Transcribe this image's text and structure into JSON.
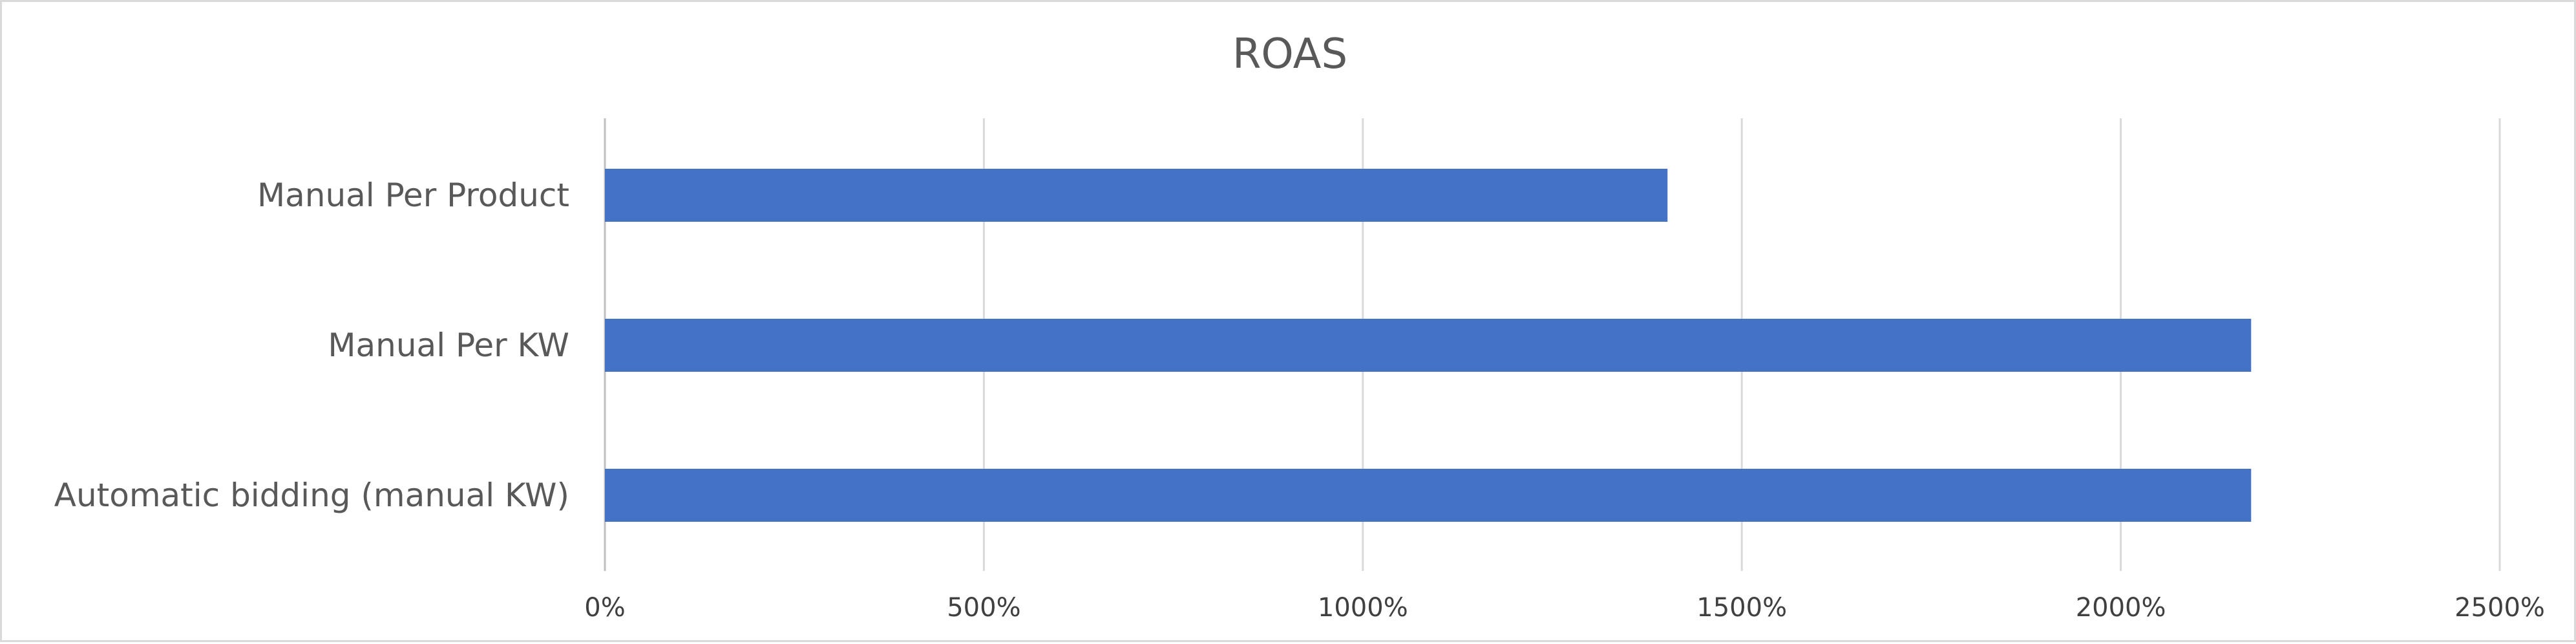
{
  "chart_data": {
    "type": "bar",
    "orientation": "horizontal",
    "title": "ROAS",
    "categories": [
      "Manual Per Product",
      "Manual Per KW",
      "Automatic bidding (manual KW)"
    ],
    "series": [
      {
        "values": [
          1402,
          2172,
          2172
        ]
      }
    ],
    "xlim": [
      0,
      2500
    ],
    "x_ticks": [
      0,
      500,
      1000,
      1500,
      2000,
      2500
    ],
    "x_tick_labels": [
      "0%",
      "500%",
      "1000%",
      "1500%",
      "2000%",
      "2500%"
    ],
    "value_format": "percent",
    "bar_color": "#4472C4",
    "gridlines": true,
    "legend": "none",
    "xlabel": "",
    "ylabel": ""
  }
}
